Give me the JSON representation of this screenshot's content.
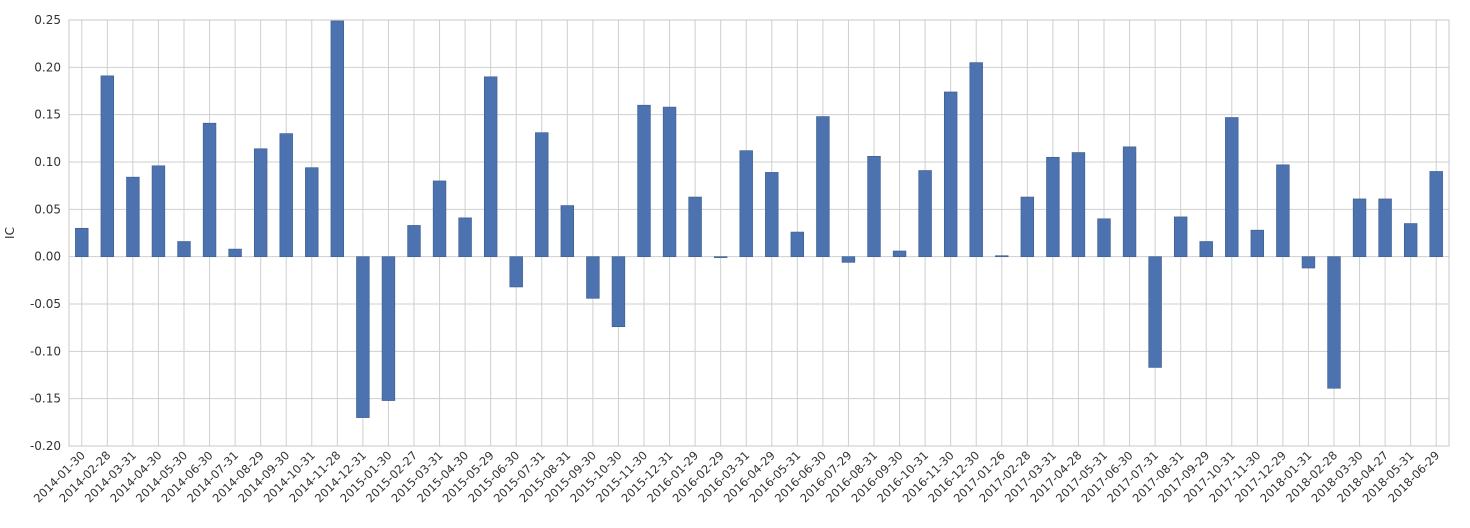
{
  "chart_data": {
    "type": "bar",
    "title": "",
    "xlabel": "",
    "ylabel": "IC",
    "ylim": [
      -0.2,
      0.25
    ],
    "yticks": [
      -0.2,
      -0.15,
      -0.1,
      -0.05,
      0.0,
      0.05,
      0.1,
      0.15,
      0.2,
      0.25
    ],
    "ytick_labels": [
      "-0.20",
      "-0.15",
      "-0.10",
      "-0.05",
      "0.00",
      "0.05",
      "0.10",
      "0.15",
      "0.20",
      "0.25"
    ],
    "grid": true,
    "legend": "none",
    "bar_color": "#4c72b0",
    "categories": [
      "2014-01-30",
      "2014-02-28",
      "2014-03-31",
      "2014-04-30",
      "2014-05-30",
      "2014-06-30",
      "2014-07-31",
      "2014-08-29",
      "2014-09-30",
      "2014-10-31",
      "2014-11-28",
      "2014-12-31",
      "2015-01-30",
      "2015-02-27",
      "2015-03-31",
      "2015-04-30",
      "2015-05-29",
      "2015-06-30",
      "2015-07-31",
      "2015-08-31",
      "2015-09-30",
      "2015-10-30",
      "2015-11-30",
      "2015-12-31",
      "2016-01-29",
      "2016-02-29",
      "2016-03-31",
      "2016-04-29",
      "2016-05-31",
      "2016-06-30",
      "2016-07-29",
      "2016-08-31",
      "2016-09-30",
      "2016-10-31",
      "2016-11-30",
      "2016-12-30",
      "2017-01-26",
      "2017-02-28",
      "2017-03-31",
      "2017-04-28",
      "2017-05-31",
      "2017-06-30",
      "2017-07-31",
      "2017-08-31",
      "2017-09-29",
      "2017-10-31",
      "2017-11-30",
      "2017-12-29",
      "2018-01-31",
      "2018-02-28",
      "2018-03-30",
      "2018-04-27",
      "2018-05-31",
      "2018-06-29"
    ],
    "values": [
      0.03,
      0.191,
      0.084,
      0.096,
      0.016,
      0.141,
      0.008,
      0.114,
      0.13,
      0.094,
      0.249,
      -0.17,
      -0.152,
      0.033,
      0.08,
      0.041,
      0.19,
      -0.032,
      0.131,
      0.054,
      -0.044,
      -0.074,
      0.16,
      0.158,
      0.063,
      -0.001,
      0.112,
      0.089,
      0.026,
      0.148,
      -0.006,
      0.106,
      0.006,
      0.091,
      0.174,
      0.205,
      0.001,
      0.063,
      0.105,
      0.11,
      0.04,
      0.116,
      -0.117,
      0.042,
      0.016,
      0.147,
      0.028,
      0.097,
      -0.012,
      -0.139,
      0.061,
      0.061,
      0.035,
      0.09
    ]
  }
}
